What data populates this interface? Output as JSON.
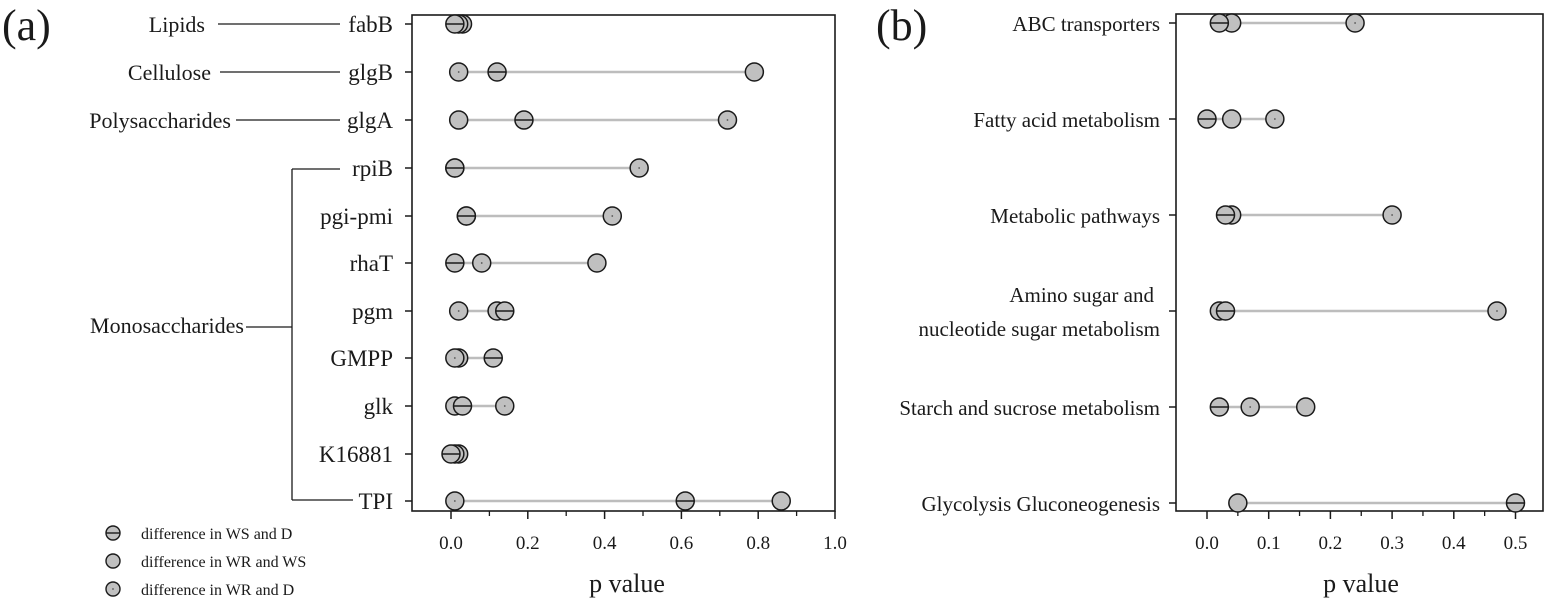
{
  "legend": {
    "items": [
      {
        "key": "ws_d",
        "label": "difference in WS and D",
        "marker": "circle-horizontal-line"
      },
      {
        "key": "wr_ws",
        "label": "difference in WR and WS",
        "marker": "circle-plain"
      },
      {
        "key": "wr_d",
        "label": "difference in WR and D",
        "marker": "circle-center-dot"
      }
    ]
  },
  "colors": {
    "marker_fill": "#c0c0c0",
    "marker_stroke": "#1a1a1a",
    "connector": "#bdbdbd",
    "axis": "#1a1a1a"
  },
  "chart_data": [
    {
      "panel": "(a)",
      "type": "scatter",
      "subtype": "dumbbell",
      "xlabel": "p value",
      "ylabel": "",
      "xlim": [
        -0.1,
        1.0
      ],
      "xticks": [
        "0.0",
        "0.2",
        "0.4",
        "0.6",
        "0.8",
        "1.0"
      ],
      "categories": [
        "fabB",
        "glgB",
        "glgA",
        "rpiB",
        "pgi-pmi",
        "rhaT",
        "pgm",
        "GMPP",
        "glk",
        "K16881",
        "TPI"
      ],
      "groups": [
        {
          "label": "Lipids",
          "members": [
            "fabB"
          ]
        },
        {
          "label": "Cellulose",
          "members": [
            "glgB"
          ]
        },
        {
          "label": "Polysaccharides",
          "members": [
            "glgA"
          ]
        },
        {
          "label": "Monosaccharides",
          "members": [
            "rpiB",
            "pgi-pmi",
            "rhaT",
            "pgm",
            "GMPP",
            "glk",
            "K16881",
            "TPI"
          ]
        }
      ],
      "series": [
        {
          "name": "difference in WS and D",
          "values": [
            0.01,
            0.12,
            0.19,
            0.01,
            0.04,
            0.01,
            0.14,
            0.11,
            0.03,
            0.0,
            0.61
          ]
        },
        {
          "name": "difference in WR and WS",
          "values": [
            0.03,
            0.79,
            0.02,
            0.01,
            0.04,
            0.38,
            0.12,
            0.02,
            0.01,
            0.02,
            0.86
          ]
        },
        {
          "name": "difference in WR and D",
          "values": [
            0.02,
            0.02,
            0.72,
            0.49,
            0.42,
            0.08,
            0.02,
            0.01,
            0.14,
            0.01,
            0.01
          ]
        }
      ],
      "grid": false,
      "legend_position": "bottom-left"
    },
    {
      "panel": "(b)",
      "type": "scatter",
      "subtype": "dumbbell",
      "xlabel": "p value",
      "ylabel": "",
      "xlim": [
        -0.05,
        0.55
      ],
      "xticks": [
        "0.0",
        "0.1",
        "0.2",
        "0.3",
        "0.4",
        "0.5"
      ],
      "categories": [
        "ABC transporters",
        "Fatty acid metabolism",
        "Metabolic pathways",
        "Amino sugar and nucleotide sugar metabolism",
        "Starch and sucrose metabolism",
        "Glycolysis Gluconeogenesis"
      ],
      "series": [
        {
          "name": "difference in WS and D",
          "values": [
            0.02,
            0.0,
            0.03,
            0.03,
            0.02,
            0.5
          ]
        },
        {
          "name": "difference in WR and WS",
          "values": [
            0.04,
            0.04,
            0.04,
            0.02,
            0.16,
            0.05
          ]
        },
        {
          "name": "difference in WR and D",
          "values": [
            0.24,
            0.11,
            0.3,
            0.47,
            0.07,
            null
          ]
        }
      ],
      "grid": false
    }
  ],
  "panel_a": {
    "tag": "(a)",
    "xlabel": "p value",
    "rows": [
      "fabB",
      "glgB",
      "glgA",
      "rpiB",
      "pgi-pmi",
      "rhaT",
      "pgm",
      "GMPP",
      "glk",
      "K16881",
      "TPI"
    ],
    "groups": [
      "Lipids",
      "Cellulose",
      "Polysaccharides",
      "Monosaccharides"
    ],
    "xticks": [
      "0.0",
      "0.2",
      "0.4",
      "0.6",
      "0.8",
      "1.0"
    ]
  },
  "panel_b": {
    "tag": "(b)",
    "xlabel": "p value",
    "rows": [
      "ABC transporters",
      "Fatty acid metabolism",
      "Metabolic pathways",
      "Amino sugar and",
      "nucleotide sugar metabolism",
      "Starch and sucrose metabolism",
      "Glycolysis Gluconeogenesis"
    ],
    "xticks": [
      "0.0",
      "0.1",
      "0.2",
      "0.3",
      "0.4",
      "0.5"
    ]
  }
}
